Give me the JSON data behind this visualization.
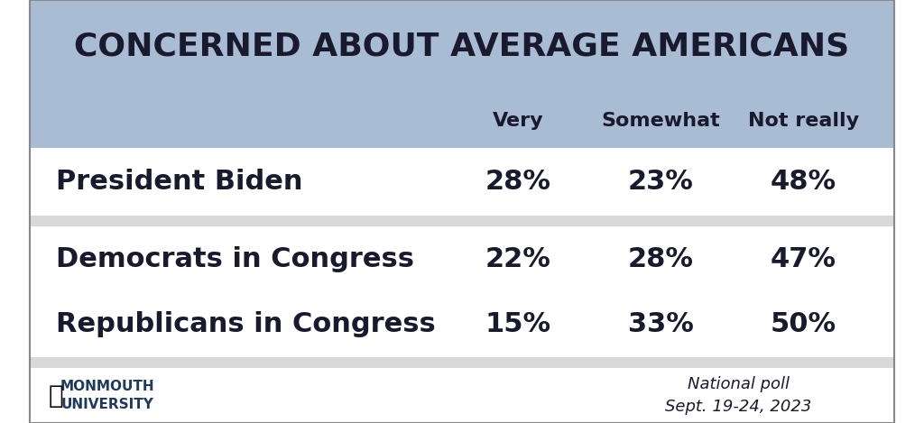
{
  "title": "CONCERNED ABOUT AVERAGE AMERICANS",
  "col_headers": [
    "",
    "Very",
    "Somewhat",
    "Not really"
  ],
  "rows": [
    {
      "label": "President Biden",
      "very": "28%",
      "somewhat": "23%",
      "not_really": "48%"
    },
    {
      "label": "Democrats in Congress",
      "very": "22%",
      "somewhat": "28%",
      "not_really": "47%"
    },
    {
      "label": "Republicans in Congress",
      "very": "15%",
      "somewhat": "33%",
      "not_really": "50%"
    }
  ],
  "title_bg_color": "#a8bcd4",
  "header_bg_color": "#a8bcd4",
  "row0_bg_color": "#ffffff",
  "row1_bg_color": "#d9d9d9",
  "row2_bg_color": "#ffffff",
  "footer_bg_color": "#ffffff",
  "separator_color": "#d9d9d9",
  "outer_border_color": "#888888",
  "title_fontsize": 26,
  "header_fontsize": 16,
  "data_fontsize": 22,
  "label_fontsize": 22,
  "footer_fontsize": 13,
  "monmouth_text": "MONMOUTH\nUNIVERSITY",
  "footer_right": "National poll\nSept. 19-24, 2023",
  "text_color": "#1a1a2e",
  "footer_text_color": "#1a1a2e"
}
